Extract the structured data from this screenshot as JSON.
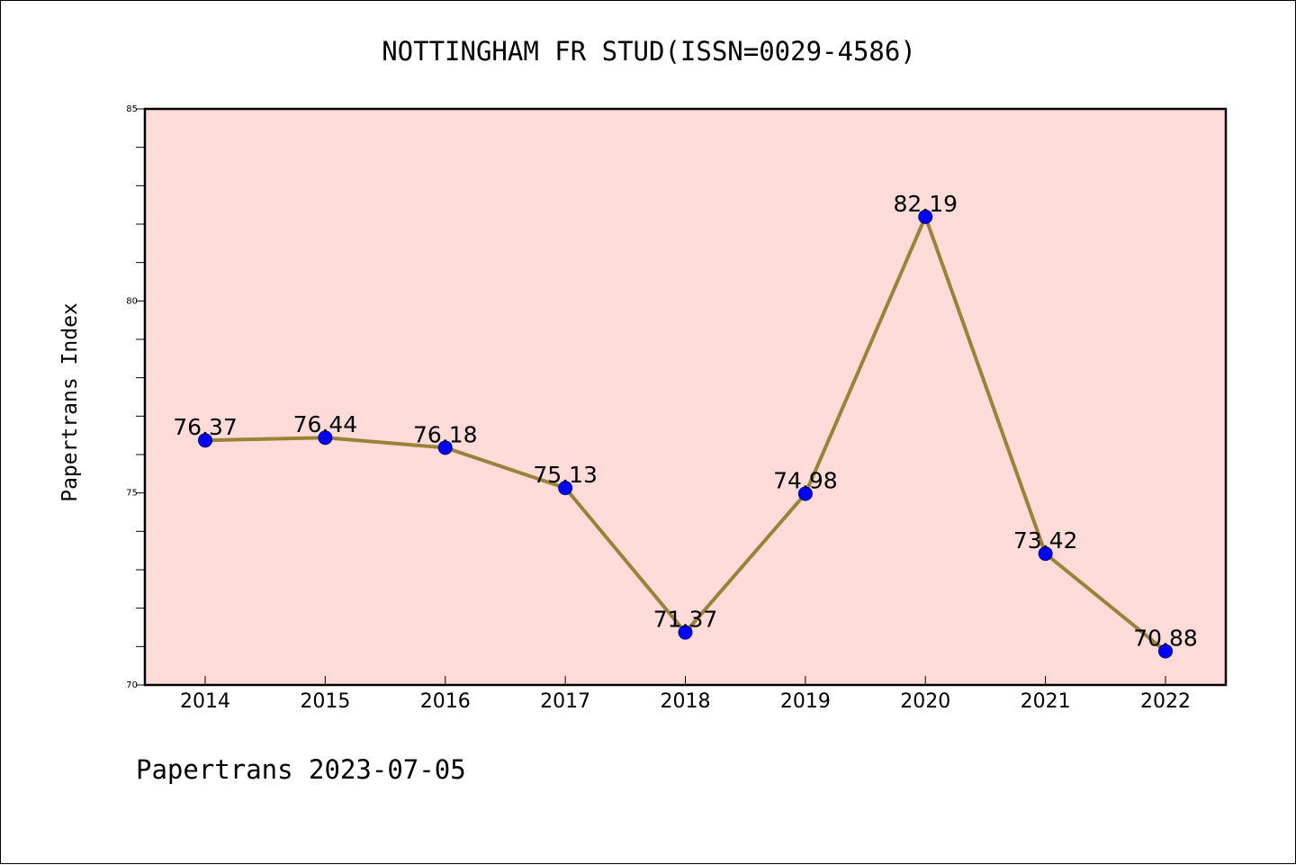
{
  "chart_data": {
    "type": "line",
    "title": "NOTTINGHAM FR STUD(ISSN=0029-4586)",
    "ylabel": "Papertrans Index",
    "xlabel": "",
    "footer": "Papertrans 2023-07-05",
    "categories": [
      "2014",
      "2015",
      "2016",
      "2017",
      "2018",
      "2019",
      "2020",
      "2021",
      "2022"
    ],
    "values": [
      76.37,
      76.44,
      76.18,
      75.13,
      71.37,
      74.98,
      82.19,
      73.42,
      70.88
    ],
    "data_labels": [
      "76.37",
      "76.44",
      "76.18",
      "75.13",
      "71.37",
      "74.98",
      "82.19",
      "73.42",
      "70.88"
    ],
    "ylim": [
      70,
      85
    ],
    "yticks": [
      "70",
      "75",
      "80",
      "85"
    ],
    "grid": false,
    "colors": {
      "plot_background": "#fddbd8",
      "line": "#9a8238",
      "marker": "#0000ff",
      "marker_edge": "#000080"
    }
  }
}
